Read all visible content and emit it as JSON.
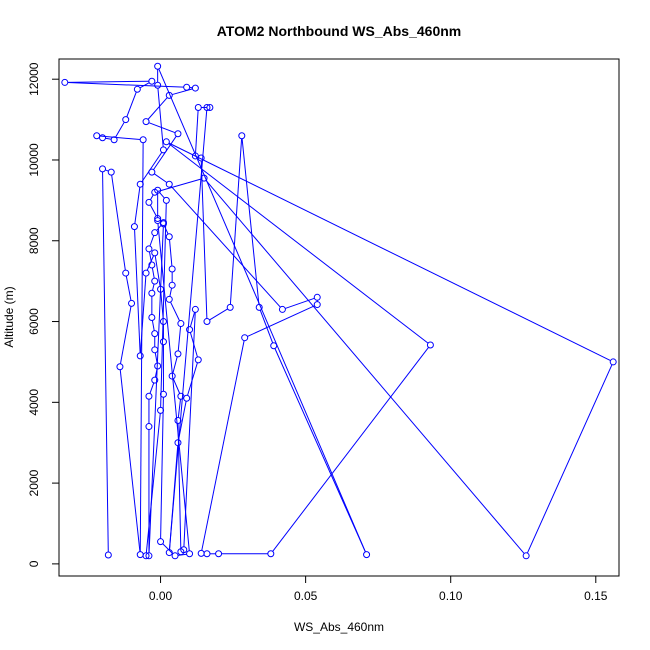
{
  "chart_data": {
    "type": "scatter",
    "title": "ATOM2 Northbound WS_Abs_460nm",
    "xlabel": "WS_Abs_460nm",
    "ylabel": "Altitude (m)",
    "xlim": [
      -0.035,
      0.158
    ],
    "ylim": [
      -300,
      12500
    ],
    "x_ticks": [
      0.0,
      0.05,
      0.1,
      0.15
    ],
    "x_tick_labels": [
      "0.00",
      "0.05",
      "0.10",
      "0.15"
    ],
    "y_ticks": [
      0,
      2000,
      4000,
      6000,
      8000,
      10000,
      12000
    ],
    "y_tick_labels": [
      "0",
      "2000",
      "4000",
      "6000",
      "8000",
      "10000",
      "12000"
    ],
    "grid": false,
    "legend": "none",
    "line_color": "#0000ff",
    "marker": "open-circle",
    "connected": true,
    "points": [
      {
        "x": -0.018,
        "y": 220
      },
      {
        "x": -0.02,
        "y": 9780
      },
      {
        "x": -0.017,
        "y": 9700
      },
      {
        "x": -0.012,
        "y": 7200
      },
      {
        "x": -0.01,
        "y": 6450
      },
      {
        "x": -0.014,
        "y": 4880
      },
      {
        "x": -0.007,
        "y": 230
      },
      {
        "x": -0.006,
        "y": 10500
      },
      {
        "x": -0.022,
        "y": 10600
      },
      {
        "x": -0.02,
        "y": 10550
      },
      {
        "x": -0.016,
        "y": 10500
      },
      {
        "x": -0.012,
        "y": 11000
      },
      {
        "x": -0.008,
        "y": 11750
      },
      {
        "x": -0.003,
        "y": 11950
      },
      {
        "x": -0.033,
        "y": 11920
      },
      {
        "x": 0.009,
        "y": 11800
      },
      {
        "x": 0.012,
        "y": 11780
      },
      {
        "x": 0.003,
        "y": 11600
      },
      {
        "x": -0.005,
        "y": 10950
      },
      {
        "x": 0.006,
        "y": 10650
      },
      {
        "x": -0.003,
        "y": 9700
      },
      {
        "x": 0.003,
        "y": 9400
      },
      {
        "x": 0.042,
        "y": 6300
      },
      {
        "x": 0.054,
        "y": 6600
      },
      {
        "x": 0.054,
        "y": 6420
      },
      {
        "x": 0.029,
        "y": 5600
      },
      {
        "x": 0.014,
        "y": 260
      },
      {
        "x": 0.016,
        "y": 250
      },
      {
        "x": 0.02,
        "y": 250
      },
      {
        "x": 0.038,
        "y": 250
      },
      {
        "x": 0.093,
        "y": 5420
      },
      {
        "x": 0.002,
        "y": 10450
      },
      {
        "x": 0.156,
        "y": 5000
      },
      {
        "x": 0.126,
        "y": 200
      },
      {
        "x": 0.015,
        "y": 9550
      },
      {
        "x": -0.002,
        "y": 9200
      },
      {
        "x": -0.004,
        "y": 8950
      },
      {
        "x": -0.001,
        "y": 8550
      },
      {
        "x": 0.001,
        "y": 8450
      },
      {
        "x": -0.002,
        "y": 8200
      },
      {
        "x": -0.004,
        "y": 7800
      },
      {
        "x": -0.003,
        "y": 7400
      },
      {
        "x": -0.002,
        "y": 7000
      },
      {
        "x": -0.003,
        "y": 6700
      },
      {
        "x": -0.003,
        "y": 6100
      },
      {
        "x": -0.002,
        "y": 5700
      },
      {
        "x": -0.002,
        "y": 5300
      },
      {
        "x": -0.001,
        "y": 4900
      },
      {
        "x": -0.002,
        "y": 4550
      },
      {
        "x": -0.004,
        "y": 4150
      },
      {
        "x": -0.004,
        "y": 3400
      },
      {
        "x": -0.004,
        "y": 200
      },
      {
        "x": 0.001,
        "y": 8420
      },
      {
        "x": 0.003,
        "y": 8100
      },
      {
        "x": 0.004,
        "y": 7300
      },
      {
        "x": 0.004,
        "y": 6900
      },
      {
        "x": 0.003,
        "y": 6550
      },
      {
        "x": 0.007,
        "y": 5950
      },
      {
        "x": 0.006,
        "y": 5200
      },
      {
        "x": 0.004,
        "y": 4650
      },
      {
        "x": 0.007,
        "y": 4150
      },
      {
        "x": 0.006,
        "y": 3550
      },
      {
        "x": 0.007,
        "y": 300
      },
      {
        "x": 0.008,
        "y": 350
      },
      {
        "x": 0.012,
        "y": 6300
      },
      {
        "x": 0.01,
        "y": 5800
      },
      {
        "x": 0.013,
        "y": 5050
      },
      {
        "x": 0.009,
        "y": 4100
      },
      {
        "x": 0.006,
        "y": 3000
      },
      {
        "x": 0.003,
        "y": 280
      },
      {
        "x": 0.016,
        "y": 11300
      },
      {
        "x": 0.017,
        "y": 11300
      },
      {
        "x": 0.013,
        "y": 11300
      },
      {
        "x": 0.012,
        "y": 10100
      },
      {
        "x": 0.014,
        "y": 10050
      },
      {
        "x": 0.016,
        "y": 6000
      },
      {
        "x": 0.024,
        "y": 6350
      },
      {
        "x": 0.028,
        "y": 10600
      },
      {
        "x": 0.034,
        "y": 6350
      },
      {
        "x": 0.039,
        "y": 5400
      },
      {
        "x": 0.071,
        "y": 230
      },
      {
        "x": -0.001,
        "y": 12320
      },
      {
        "x": -0.001,
        "y": 11850
      },
      {
        "x": 0.001,
        "y": 10250
      },
      {
        "x": -0.007,
        "y": 9400
      },
      {
        "x": -0.009,
        "y": 8350
      },
      {
        "x": -0.007,
        "y": 5150
      },
      {
        "x": -0.005,
        "y": 7200
      },
      {
        "x": -0.002,
        "y": 7700
      },
      {
        "x": 0.0,
        "y": 6800
      },
      {
        "x": 0.001,
        "y": 6000
      },
      {
        "x": 0.001,
        "y": 5500
      },
      {
        "x": 0.001,
        "y": 4200
      },
      {
        "x": 0.0,
        "y": 550
      },
      {
        "x": 0.005,
        "y": 200
      },
      {
        "x": 0.01,
        "y": 250
      },
      {
        "x": -0.001,
        "y": 8500
      },
      {
        "x": -0.001,
        "y": 9250
      },
      {
        "x": 0.002,
        "y": 9000
      },
      {
        "x": 0.0,
        "y": 3800
      },
      {
        "x": -0.005,
        "y": 200
      }
    ]
  }
}
